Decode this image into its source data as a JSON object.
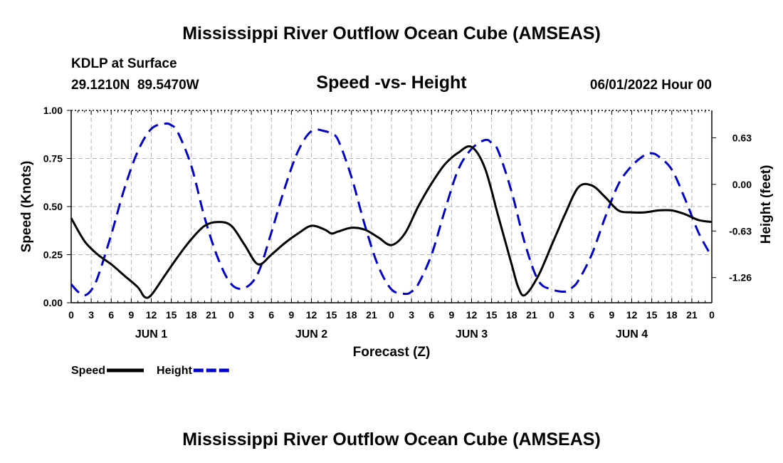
{
  "chart_data": {
    "type": "line",
    "title": "Mississippi River Outflow Ocean Cube (AMSEAS)",
    "station": "KDLP at Surface",
    "coords": "29.1210N  89.5470W",
    "subtitle": "Speed -vs- Height",
    "datetime": "06/01/2022 Hour 00",
    "xlabel": "Forecast (Z)",
    "ylabel_left": "Speed (Knots)",
    "ylabel_right": "Height (feet)",
    "x_range": [
      0,
      96
    ],
    "x_ticks": [
      0,
      3,
      6,
      9,
      12,
      15,
      18,
      21,
      24,
      27,
      30,
      33,
      36,
      39,
      42,
      45,
      48,
      51,
      54,
      57,
      60,
      63,
      66,
      69,
      72,
      75,
      78,
      81,
      84,
      87,
      90,
      93,
      96
    ],
    "x_tick_labels": [
      "0",
      "3",
      "6",
      "9",
      "12",
      "15",
      "18",
      "21",
      "0",
      "3",
      "6",
      "9",
      "12",
      "15",
      "18",
      "21",
      "0",
      "3",
      "6",
      "9",
      "12",
      "15",
      "18",
      "21",
      "0",
      "3",
      "6",
      "9",
      "12",
      "15",
      "18",
      "21",
      "0"
    ],
    "day_labels": [
      {
        "label": "JUN 1",
        "x": 12
      },
      {
        "label": "JUN 2",
        "x": 36
      },
      {
        "label": "JUN 3",
        "x": 60
      },
      {
        "label": "JUN 4",
        "x": 84
      }
    ],
    "y_left_range": [
      0,
      1.0
    ],
    "y_left_ticks": [
      0.0,
      0.25,
      0.5,
      0.75,
      1.0
    ],
    "y_left_tick_labels": [
      "0.00",
      "0.25",
      "0.50",
      "0.75",
      "1.00"
    ],
    "y_right_range": [
      -1.6,
      1.0
    ],
    "y_right_ticks": [
      0.63,
      0.0,
      -0.63,
      -1.26
    ],
    "y_right_tick_labels": [
      "0.63",
      "0.00",
      "-0.63",
      "-1.26"
    ],
    "grid": true,
    "series": [
      {
        "name": "Speed",
        "axis": "left",
        "color": "#000000",
        "style": "solid",
        "x": [
          0,
          2,
          4,
          6,
          8,
          10,
          11,
          12,
          14,
          16,
          18,
          20,
          22,
          24,
          26,
          28,
          30,
          32,
          34,
          36,
          38,
          39,
          40,
          42,
          44,
          46,
          48,
          50,
          52,
          54,
          56,
          58,
          60,
          62,
          64,
          66,
          67,
          68,
          70,
          72,
          73,
          74,
          76,
          78,
          80,
          82,
          84,
          86,
          88,
          90,
          92,
          94,
          96
        ],
        "values": [
          0.44,
          0.32,
          0.25,
          0.2,
          0.14,
          0.08,
          0.03,
          0.04,
          0.14,
          0.24,
          0.33,
          0.4,
          0.42,
          0.4,
          0.3,
          0.2,
          0.25,
          0.31,
          0.36,
          0.4,
          0.38,
          0.36,
          0.37,
          0.39,
          0.38,
          0.34,
          0.3,
          0.36,
          0.5,
          0.62,
          0.72,
          0.78,
          0.81,
          0.7,
          0.45,
          0.2,
          0.08,
          0.04,
          0.14,
          0.3,
          0.38,
          0.46,
          0.6,
          0.61,
          0.55,
          0.48,
          0.47,
          0.47,
          0.48,
          0.48,
          0.46,
          0.43,
          0.42
        ]
      },
      {
        "name": "Height",
        "axis": "right",
        "color": "#0000cc",
        "style": "dashed",
        "x": [
          0,
          1,
          2,
          3,
          4,
          6,
          8,
          10,
          12,
          14,
          15,
          16,
          18,
          20,
          22,
          24,
          26,
          28,
          30,
          32,
          34,
          36,
          38,
          39,
          40,
          42,
          44,
          46,
          48,
          50,
          51,
          52,
          54,
          56,
          58,
          60,
          62,
          63,
          64,
          66,
          68,
          70,
          72,
          74,
          75,
          76,
          78,
          80,
          82,
          84,
          86,
          87,
          88,
          90,
          92,
          94,
          96
        ],
        "values": [
          -1.35,
          -1.45,
          -1.5,
          -1.43,
          -1.25,
          -0.68,
          -0.05,
          0.45,
          0.75,
          0.82,
          0.8,
          0.7,
          0.25,
          -0.45,
          -1.0,
          -1.35,
          -1.4,
          -1.2,
          -0.65,
          -0.05,
          0.45,
          0.72,
          0.72,
          0.68,
          0.6,
          0.1,
          -0.55,
          -1.1,
          -1.42,
          -1.48,
          -1.45,
          -1.35,
          -0.95,
          -0.35,
          0.2,
          0.48,
          0.6,
          0.56,
          0.45,
          -0.1,
          -0.8,
          -1.3,
          -1.42,
          -1.45,
          -1.4,
          -1.3,
          -0.95,
          -0.45,
          0.0,
          0.25,
          0.4,
          0.42,
          0.38,
          0.2,
          -0.2,
          -0.65,
          -0.98
        ]
      }
    ],
    "legend": [
      {
        "label": "Speed",
        "color": "#000000",
        "style": "solid"
      },
      {
        "label": "Height",
        "color": "#0000cc",
        "style": "dashed"
      }
    ],
    "footer_title": "Mississippi River Outflow Ocean Cube (AMSEAS)"
  }
}
